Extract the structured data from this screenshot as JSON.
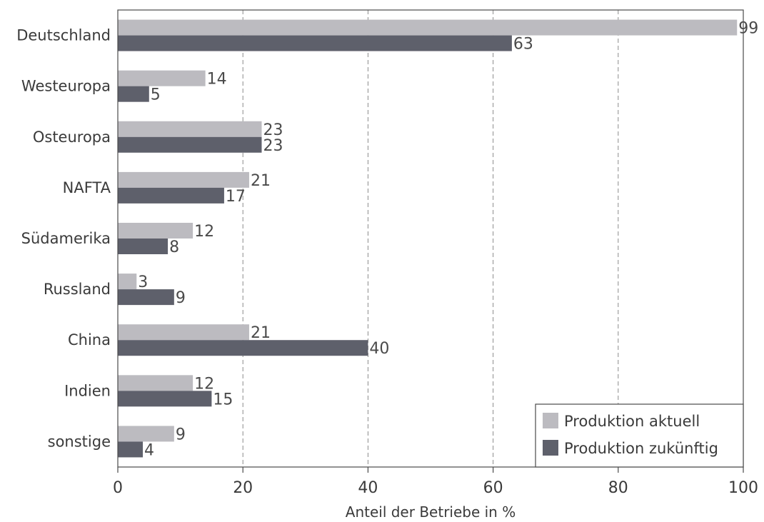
{
  "chart_data": {
    "type": "bar",
    "orientation": "horizontal",
    "categories": [
      "Deutschland",
      "Westeuropa",
      "Osteuropa",
      "NAFTA",
      "Südamerika",
      "Russland",
      "China",
      "Indien",
      "sonstige"
    ],
    "series": [
      {
        "name": "Produktion aktuell",
        "values": [
          99,
          14,
          23,
          21,
          12,
          3,
          21,
          12,
          9
        ],
        "color": "#bcbbc0"
      },
      {
        "name": "Produktion zukünftig",
        "values": [
          63,
          5,
          23,
          17,
          8,
          9,
          40,
          15,
          4
        ],
        "color": "#5e606b"
      }
    ],
    "xlabel": "Anteil der Betriebe in %",
    "xlim": [
      0,
      100
    ],
    "xticks": [
      0,
      20,
      40,
      60,
      80,
      100
    ],
    "grid": "vertical dashed",
    "legend_position": "bottom-right"
  }
}
